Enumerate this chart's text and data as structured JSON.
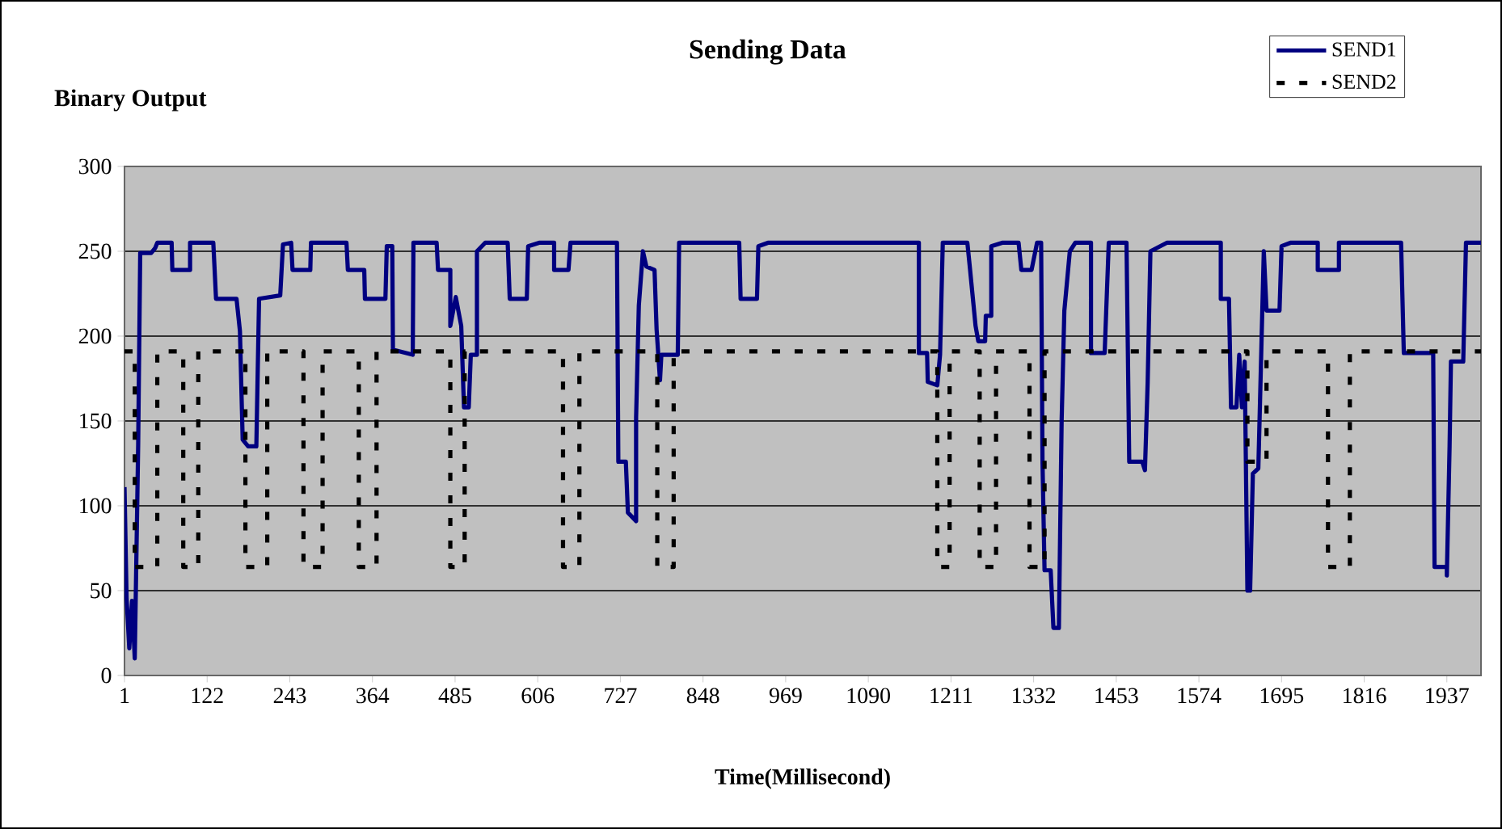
{
  "chart_data": {
    "type": "line",
    "title": "Sending Data",
    "ylabel": "Binary Output",
    "xlabel": "Time(Millisecond)",
    "xlim": [
      1,
      1987
    ],
    "xticks": [
      1,
      122,
      243,
      364,
      485,
      606,
      727,
      848,
      969,
      1090,
      1211,
      1332,
      1453,
      1574,
      1695,
      1816,
      1937
    ],
    "ylim": [
      0,
      300
    ],
    "yticks": [
      0,
      50,
      100,
      150,
      200,
      250,
      300
    ],
    "grid": "y",
    "legend": "top right",
    "marker": "none",
    "series": [
      {
        "name": "SEND1",
        "color": "#000080",
        "line_style": "solid",
        "x": [
          1,
          4,
          8,
          12,
          16,
          18,
          21,
          24,
          40,
          46,
          49,
          70,
          71,
          97,
          97,
          131,
          135,
          165,
          170,
          174,
          182,
          194,
          198,
          229,
          233,
          245,
          247,
          273,
          274,
          326,
          328,
          352,
          353,
          383,
          385,
          393,
          394,
          423,
          424,
          458,
          460,
          478,
          478,
          486,
          494,
          498,
          505,
          508,
          517,
          517,
          529,
          562,
          565,
          590,
          592,
          608,
          630,
          630,
          651,
          654,
          722,
          724,
          735,
          738,
          750,
          750,
          754,
          760,
          765,
          777,
          780,
          785,
          787,
          811,
          813,
          901,
          903,
          927,
          929,
          943,
          1164,
          1164,
          1176,
          1177,
          1191,
          1195,
          1199,
          1235,
          1239,
          1247,
          1251,
          1261,
          1262,
          1270,
          1270,
          1286,
          1310,
          1314,
          1329,
          1337,
          1343,
          1345,
          1348,
          1357,
          1361,
          1369,
          1373,
          1377,
          1385,
          1393,
          1416,
          1416,
          1436,
          1442,
          1468,
          1472,
          1491,
          1495,
          1499,
          1503,
          1527,
          1606,
          1606,
          1618,
          1621,
          1629,
          1633,
          1637,
          1641,
          1645,
          1649,
          1653,
          1661,
          1669,
          1673,
          1692,
          1695,
          1708,
          1748,
          1748,
          1779,
          1779,
          1870,
          1874,
          1917,
          1919,
          1937,
          1937,
          1941,
          1943,
          1961,
          1965,
          1987
        ],
        "values": [
          111,
          46,
          16,
          44,
          10,
          60,
          136,
          249,
          249,
          252,
          255,
          255,
          239,
          239,
          255,
          255,
          222,
          222,
          203,
          139,
          135,
          135,
          222,
          224,
          254,
          255,
          239,
          239,
          255,
          255,
          239,
          239,
          222,
          222,
          253,
          253,
          192,
          189,
          255,
          255,
          239,
          239,
          206,
          223,
          206,
          158,
          158,
          189,
          189,
          250,
          255,
          255,
          222,
          222,
          253,
          255,
          255,
          239,
          239,
          255,
          255,
          126,
          126,
          96,
          91,
          152,
          218,
          250,
          241,
          239,
          204,
          174,
          189,
          189,
          255,
          255,
          222,
          222,
          253,
          255,
          255,
          190,
          190,
          173,
          171,
          189,
          255,
          255,
          239,
          206,
          197,
          197,
          212,
          212,
          253,
          255,
          255,
          239,
          239,
          255,
          255,
          126,
          62,
          62,
          28,
          28,
          150,
          215,
          250,
          255,
          255,
          190,
          190,
          255,
          255,
          126,
          126,
          121,
          173,
          250,
          255,
          255,
          222,
          222,
          158,
          158,
          189,
          158,
          185,
          50,
          50,
          119,
          122,
          250,
          215,
          215,
          253,
          255,
          255,
          239,
          239,
          255,
          255,
          190,
          190,
          64,
          64,
          59,
          135,
          185,
          185,
          255,
          255
        ]
      },
      {
        "name": "SEND2",
        "color": "#000000",
        "line_style": "dashed",
        "x": [
          1,
          16,
          16,
          49,
          49,
          87,
          87,
          109,
          109,
          178,
          178,
          210,
          210,
          263,
          263,
          291,
          291,
          344,
          344,
          370,
          370,
          478,
          478,
          499,
          499,
          643,
          643,
          667,
          667,
          781,
          781,
          805,
          805,
          1191,
          1191,
          1209,
          1209,
          1253,
          1253,
          1277,
          1277,
          1326,
          1326,
          1348,
          1348,
          1645,
          1645,
          1673,
          1673,
          1763,
          1763,
          1795,
          1795,
          1987
        ],
        "values": [
          191,
          191,
          64,
          64,
          191,
          191,
          64,
          64,
          191,
          191,
          64,
          64,
          191,
          191,
          64,
          64,
          191,
          191,
          64,
          64,
          191,
          191,
          64,
          64,
          191,
          191,
          64,
          64,
          191,
          191,
          64,
          64,
          191,
          191,
          64,
          64,
          191,
          191,
          64,
          64,
          191,
          191,
          64,
          64,
          191,
          191,
          126,
          126,
          191,
          191,
          64,
          64,
          191,
          191
        ]
      }
    ]
  }
}
